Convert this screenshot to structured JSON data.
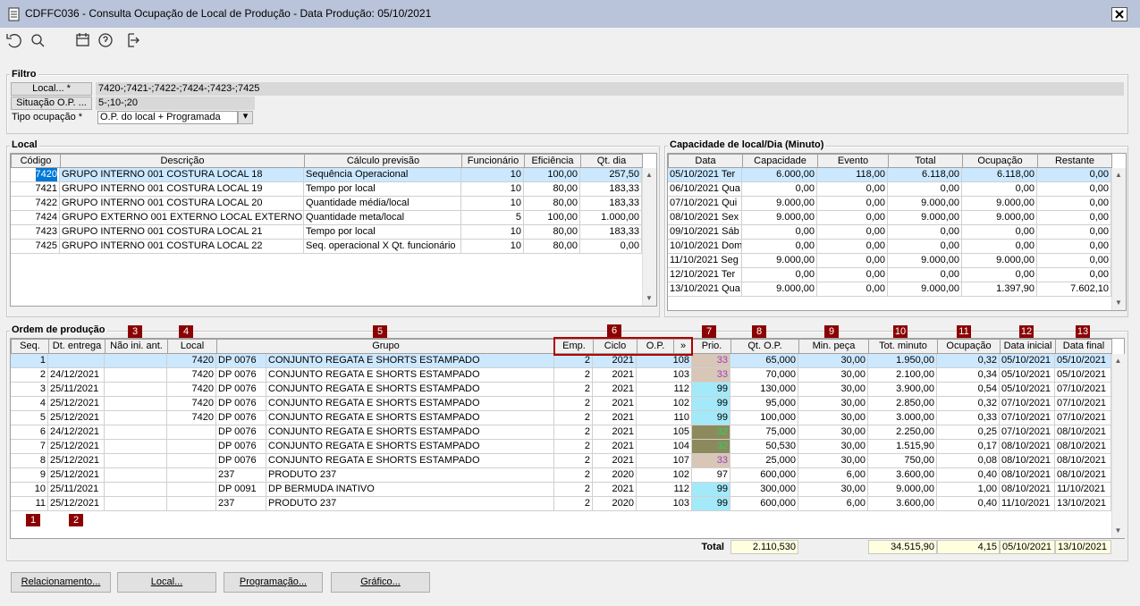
{
  "window": {
    "title": "CDFFC036 - Consulta Ocupação de Local de Produção - Data Produção: 05/10/2021"
  },
  "filter": {
    "title": "Filtro",
    "local_button": "Local... *",
    "local_value": "7420-;7421-;7422-;7424-;7423-;7425",
    "situacao_button": "Situação O.P. ...",
    "situacao_value": "5-;10-;20",
    "tipo_label": "Tipo ocupação *",
    "tipo_value": "O.P. do local + Programada"
  },
  "local": {
    "title": "Local",
    "headers": [
      "Código",
      "Descrição",
      "Cálculo previsão",
      "Funcionário",
      "Eficiência",
      "Qt. dia"
    ],
    "rows": [
      [
        "7420",
        "GRUPO INTERNO 001 COSTURA LOCAL 18",
        "Sequência Operacional",
        "10",
        "100,00",
        "257,50"
      ],
      [
        "7421",
        "GRUPO INTERNO 001 COSTURA LOCAL 19",
        "Tempo por local",
        "10",
        "80,00",
        "183,33"
      ],
      [
        "7422",
        "GRUPO INTERNO 001 COSTURA LOCAL 20",
        "Quantidade média/local",
        "10",
        "80,00",
        "183,33"
      ],
      [
        "7424",
        "GRUPO EXTERNO 001 EXTERNO LOCAL EXTERNO",
        "Quantidade meta/local",
        "5",
        "100,00",
        "1.000,00"
      ],
      [
        "7423",
        "GRUPO INTERNO 001 COSTURA LOCAL 21",
        "Tempo por local",
        "10",
        "80,00",
        "183,33"
      ],
      [
        "7425",
        "GRUPO INTERNO 001 COSTURA LOCAL 22",
        "Seq. operacional X Qt. funcionário",
        "10",
        "80,00",
        "0,00"
      ]
    ]
  },
  "capacidade": {
    "title": "Capacidade de local/Dia (Minuto)",
    "headers": [
      "Data",
      "Capacidade",
      "Evento",
      "Total",
      "Ocupação",
      "Restante"
    ],
    "rows": [
      [
        "05/10/2021 Ter",
        "6.000,00",
        "118,00",
        "6.118,00",
        "6.118,00",
        "0,00"
      ],
      [
        "06/10/2021 Qua",
        "0,00",
        "0,00",
        "0,00",
        "0,00",
        "0,00"
      ],
      [
        "07/10/2021 Qui",
        "9.000,00",
        "0,00",
        "9.000,00",
        "9.000,00",
        "0,00"
      ],
      [
        "08/10/2021 Sex",
        "9.000,00",
        "0,00",
        "9.000,00",
        "9.000,00",
        "0,00"
      ],
      [
        "09/10/2021 Sáb",
        "0,00",
        "0,00",
        "0,00",
        "0,00",
        "0,00"
      ],
      [
        "10/10/2021 Dom",
        "0,00",
        "0,00",
        "0,00",
        "0,00",
        "0,00"
      ],
      [
        "11/10/2021 Seg",
        "9.000,00",
        "0,00",
        "9.000,00",
        "9.000,00",
        "0,00"
      ],
      [
        "12/10/2021 Ter",
        "0,00",
        "0,00",
        "0,00",
        "0,00",
        "0,00"
      ],
      [
        "13/10/2021 Qua",
        "9.000,00",
        "0,00",
        "9.000,00",
        "1.397,90",
        "7.602,10"
      ]
    ]
  },
  "ordem": {
    "title": "Ordem de produção",
    "headers": [
      "Seq.",
      "Dt. entrega",
      "Não ini. ant.",
      "Local",
      "Grupo",
      "Emp.",
      "Ciclo",
      "O.P.",
      "»",
      "Prio.",
      "Qt. O.P.",
      "Min. peça",
      "Tot. minuto",
      "Ocupação",
      "Data inicial",
      "Data final"
    ],
    "rows": [
      [
        "1",
        null,
        null,
        "7420",
        "DP 0076",
        "CONJUNTO REGATA E SHORTS ESTAMPADO",
        "2",
        "2021",
        "108",
        "33",
        "65,000",
        "30,00",
        "1.950,00",
        "0,32",
        "05/10/2021",
        "05/10/2021"
      ],
      [
        "2",
        "24/12/2021",
        null,
        "7420",
        "DP 0076",
        "CONJUNTO REGATA E SHORTS ESTAMPADO",
        "2",
        "2021",
        "103",
        "33",
        "70,000",
        "30,00",
        "2.100,00",
        "0,34",
        "05/10/2021",
        "05/10/2021"
      ],
      [
        "3",
        "25/11/2021",
        null,
        "7420",
        "DP 0076",
        "CONJUNTO REGATA E SHORTS ESTAMPADO",
        "2",
        "2021",
        "112",
        "99",
        "130,000",
        "30,00",
        "3.900,00",
        "0,54",
        "05/10/2021",
        "07/10/2021"
      ],
      [
        "4",
        "25/12/2021",
        null,
        "7420",
        "DP 0076",
        "CONJUNTO REGATA E SHORTS ESTAMPADO",
        "2",
        "2021",
        "102",
        "99",
        "95,000",
        "30,00",
        "2.850,00",
        "0,32",
        "07/10/2021",
        "07/10/2021"
      ],
      [
        "5",
        "25/12/2021",
        null,
        "7420",
        "DP 0076",
        "CONJUNTO REGATA E SHORTS ESTAMPADO",
        "2",
        "2021",
        "110",
        "99",
        "100,000",
        "30,00",
        "3.000,00",
        "0,33",
        "07/10/2021",
        "07/10/2021"
      ],
      [
        "6",
        "24/12/2021",
        null,
        null,
        "DP 0076",
        "CONJUNTO REGATA E SHORTS ESTAMPADO",
        "2",
        "2021",
        "105",
        "32",
        "75,000",
        "30,00",
        "2.250,00",
        "0,25",
        "07/10/2021",
        "08/10/2021"
      ],
      [
        "7",
        "25/12/2021",
        null,
        null,
        "DP 0076",
        "CONJUNTO REGATA E SHORTS ESTAMPADO",
        "2",
        "2021",
        "104",
        "32",
        "50,530",
        "30,00",
        "1.515,90",
        "0,17",
        "08/10/2021",
        "08/10/2021"
      ],
      [
        "8",
        "25/12/2021",
        null,
        null,
        "DP 0076",
        "CONJUNTO REGATA E SHORTS ESTAMPADO",
        "2",
        "2021",
        "107",
        "33",
        "25,000",
        "30,00",
        "750,00",
        "0,08",
        "08/10/2021",
        "08/10/2021"
      ],
      [
        "9",
        "25/12/2021",
        null,
        null,
        "237",
        "PRODUTO 237",
        "2",
        "2020",
        "102",
        "97",
        "600,000",
        "6,00",
        "3.600,00",
        "0,40",
        "08/10/2021",
        "08/10/2021"
      ],
      [
        "10",
        "25/11/2021",
        null,
        null,
        "DP 0091",
        "DP BERMUDA INATIVO",
        "2",
        "2021",
        "112",
        "99",
        "300,000",
        "30,00",
        "9.000,00",
        "1,00",
        "08/10/2021",
        "11/10/2021"
      ],
      [
        "11",
        "25/12/2021",
        null,
        null,
        "237",
        "PRODUTO 237",
        "2",
        "2020",
        "103",
        "99",
        "600,000",
        "6,00",
        "3.600,00",
        "0,40",
        "11/10/2021",
        "13/10/2021"
      ]
    ],
    "prio_backgrounds": [
      "#d8c6b6",
      "#d8c6b6",
      "#a3e9f9",
      "#a3e9f9",
      "#a3e9f9",
      "#8c8a5c",
      "#8c8a5c",
      "#d8c6b6",
      "#ffffff",
      "#a3e9f9",
      "#a3e9f9"
    ],
    "prio_text_colors": [
      "#a040c0",
      "#a040c0",
      "#000000",
      "#000000",
      "#000000",
      "#30d060",
      "#30d060",
      "#a040c0",
      "#000000",
      "#000000",
      "#000000"
    ],
    "total_label": "Total",
    "totals": [
      "2.110,530",
      "34.515,90",
      "4,15",
      "05/10/2021",
      "13/10/2021"
    ]
  },
  "markers": [
    "1",
    "2",
    "3",
    "4",
    "5",
    "6",
    "7",
    "8",
    "9",
    "10",
    "11",
    "12",
    "13"
  ],
  "buttons": [
    "Relacionamento...",
    "Local...",
    "Programação...",
    "Gráfico..."
  ]
}
